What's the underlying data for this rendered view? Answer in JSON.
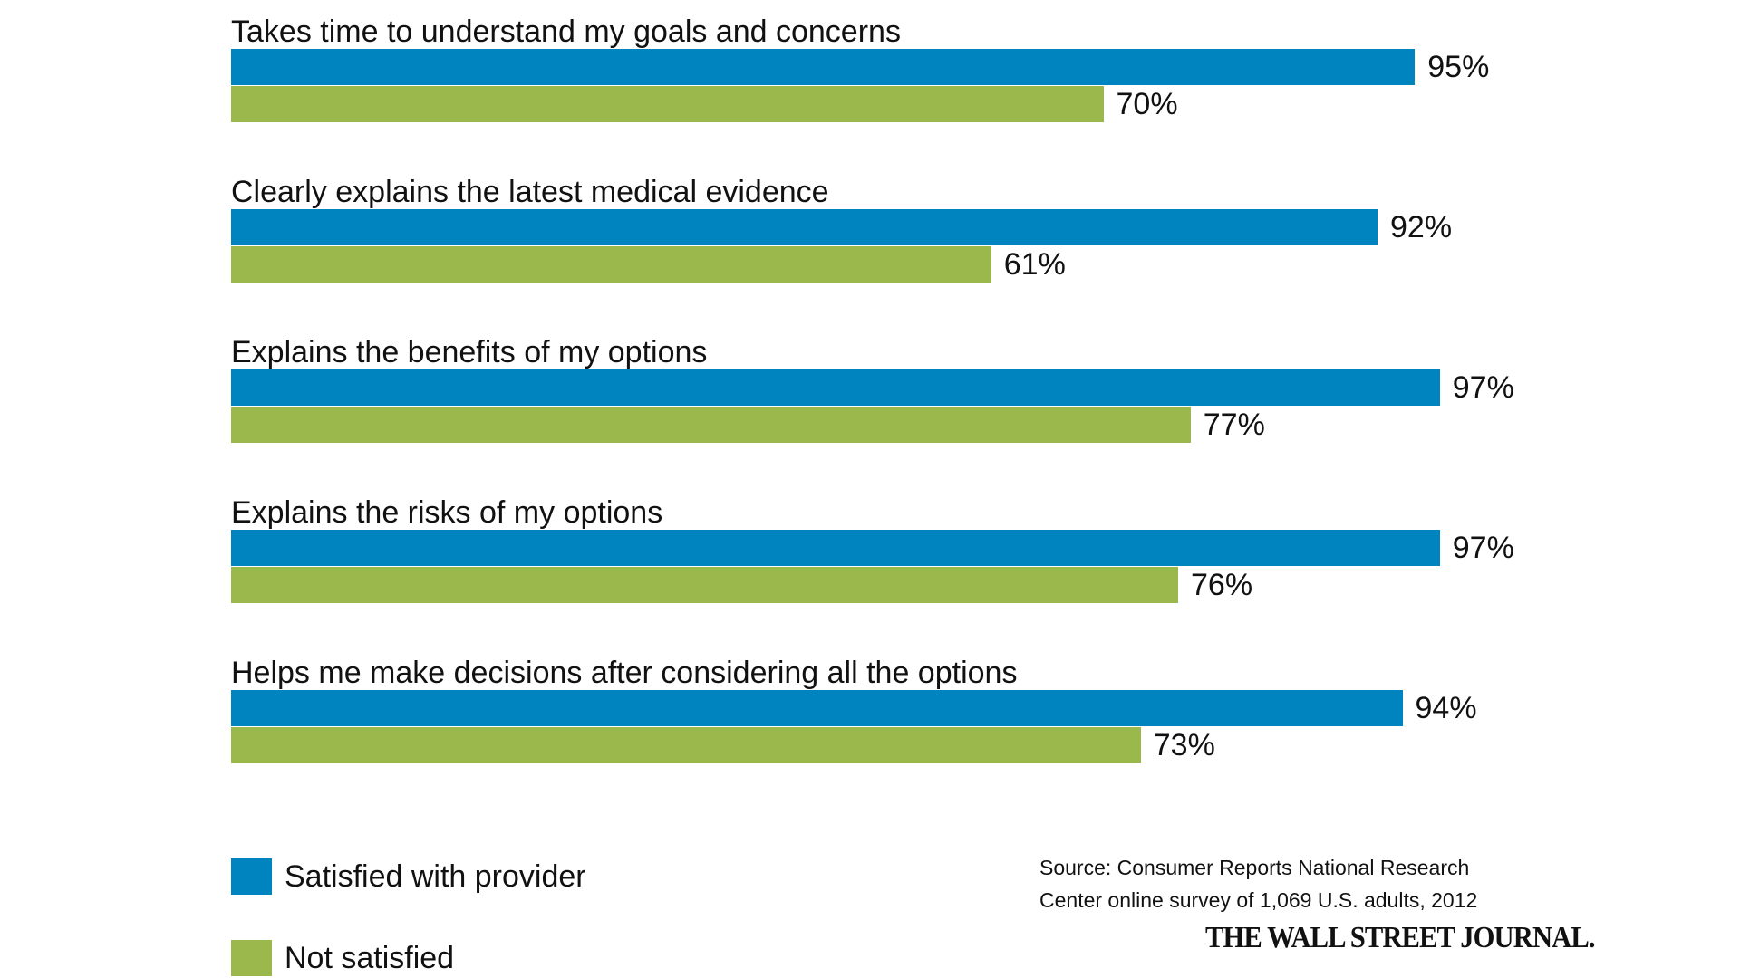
{
  "chart_data": {
    "type": "bar",
    "orientation": "horizontal",
    "categories": [
      "Takes time to understand my goals and concerns",
      "Clearly explains the latest medical evidence",
      "Explains the benefits of my options",
      "Explains the risks of my options",
      "Helps me make decisions after considering all the options"
    ],
    "series": [
      {
        "name": "Satisfied with provider",
        "color": "#0084c0",
        "values": [
          95,
          92,
          97,
          97,
          94
        ]
      },
      {
        "name": "Not satisfied",
        "color": "#9bb84c",
        "values": [
          70,
          61,
          77,
          76,
          73
        ]
      }
    ],
    "value_suffix": "%",
    "xlim": [
      0,
      100
    ],
    "title": "",
    "xlabel": "",
    "ylabel": "",
    "grid": false,
    "legend_position": "bottom-left"
  },
  "source": {
    "line1": "Source: Consumer Reports National Research",
    "line2": "Center online survey of 1,069 U.S. adults, 2012"
  },
  "publisher": "THE WALL STREET JOURNAL."
}
